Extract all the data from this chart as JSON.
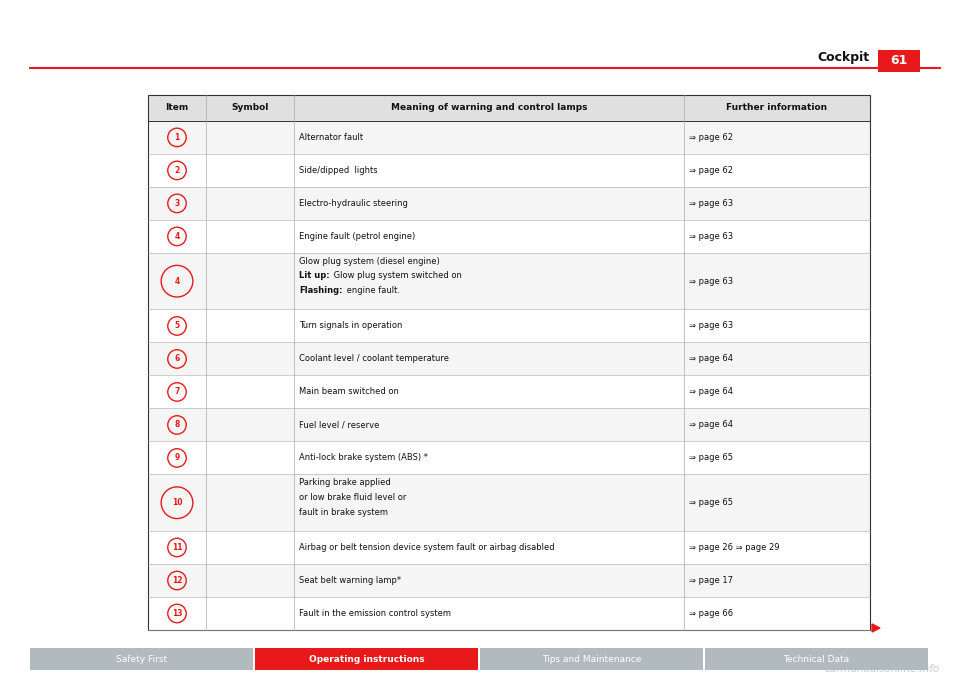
{
  "bg_color": "#ffffff",
  "page_title": "Cockpit",
  "page_number": "61",
  "red_color": "#e8191a",
  "col_headers": [
    "Item",
    "Symbol",
    "Meaning of warning and control lamps",
    "Further information"
  ],
  "rows": [
    {
      "item": "1",
      "meaning": "Alternator fault",
      "info": "⇒ page 62",
      "tall": false,
      "lines": 1
    },
    {
      "item": "2",
      "meaning": "Side/dipped  lights",
      "info": "⇒ page 62",
      "tall": false,
      "lines": 1
    },
    {
      "item": "3",
      "meaning": "Electro-hydraulic steering",
      "info": "⇒ page 63",
      "tall": false,
      "lines": 1
    },
    {
      "item": "4",
      "meaning": "Engine fault (petrol engine)",
      "info": "⇒ page 63",
      "tall": false,
      "lines": 1
    },
    {
      "item": "4",
      "meaning": "Glow plug system (diesel engine)\nLit up: Glow plug system switched on\nFlashing: engine fault.",
      "info": "⇒ page 63",
      "tall": true,
      "lines": 3
    },
    {
      "item": "5",
      "meaning": "Turn signals in operation",
      "info": "⇒ page 63",
      "tall": false,
      "lines": 1
    },
    {
      "item": "6",
      "meaning": "Coolant level / coolant temperature",
      "info": "⇒ page 64",
      "tall": false,
      "lines": 1
    },
    {
      "item": "7",
      "meaning": "Main beam switched on",
      "info": "⇒ page 64",
      "tall": false,
      "lines": 1
    },
    {
      "item": "8",
      "meaning": "Fuel level / reserve",
      "info": "⇒ page 64",
      "tall": false,
      "lines": 1
    },
    {
      "item": "9",
      "meaning": "Anti-lock brake system (ABS) *",
      "info": "⇒ page 65",
      "tall": false,
      "lines": 1
    },
    {
      "item": "10",
      "meaning": "Parking brake applied\nor low brake fluid level or\nfault in brake system",
      "info": "⇒ page 65",
      "tall": true,
      "lines": 3
    },
    {
      "item": "11",
      "meaning": "Airbag or belt tension device system fault or airbag disabled",
      "info": "⇒ page 26 ⇒ page 29",
      "tall": false,
      "lines": 1
    },
    {
      "item": "12",
      "meaning": "Seat belt warning lamp*",
      "info": "⇒ page 17",
      "tall": false,
      "lines": 1
    },
    {
      "item": "13",
      "meaning": "Fault in the emission control system",
      "info": "⇒ page 66",
      "tall": false,
      "lines": 1
    }
  ],
  "footer_sections": [
    "Safety First",
    "Operating instructions",
    "Tips and Maintenance",
    "Technical Data"
  ],
  "footer_colors": [
    "#b0babf",
    "#e8191a",
    "#b0babf",
    "#b0babf"
  ],
  "footer_text_colors": [
    "#ffffff",
    "#ffffff",
    "#ffffff",
    "#ffffff"
  ],
  "watermark": "carmanualsonline.info"
}
